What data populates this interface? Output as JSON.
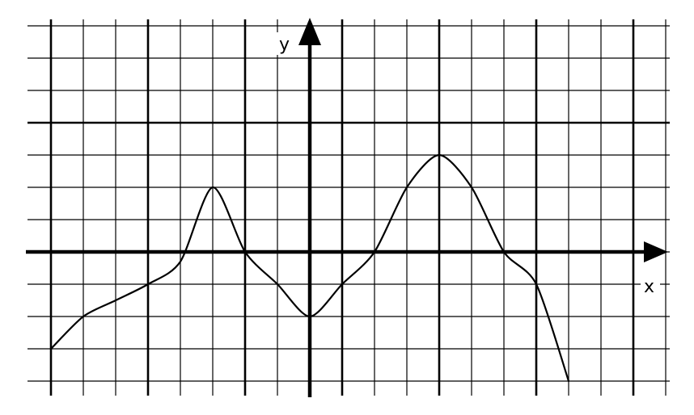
{
  "chart_data": {
    "type": "line",
    "title": "",
    "xlabel": "x",
    "ylabel": "y",
    "grid": true,
    "xlim": [
      -8.5,
      11
    ],
    "ylim": [
      -4,
      7
    ],
    "series": [
      {
        "values": [
          {
            "x": -8,
            "y": -3
          },
          {
            "x": -7,
            "y": -2
          },
          {
            "x": -6,
            "y": -1.5
          },
          {
            "x": -5,
            "y": -1
          },
          {
            "x": -4,
            "y": -0.3
          },
          {
            "x": -3,
            "y": 2
          },
          {
            "x": -2,
            "y": 0
          },
          {
            "x": -1,
            "y": -1
          },
          {
            "x": 0,
            "y": -2
          },
          {
            "x": 1,
            "y": -1
          },
          {
            "x": 2,
            "y": 0
          },
          {
            "x": 3,
            "y": 2
          },
          {
            "x": 4,
            "y": 3
          },
          {
            "x": 5,
            "y": 2
          },
          {
            "x": 6,
            "y": 0
          },
          {
            "x": 7,
            "y": -1
          },
          {
            "x": 8,
            "y": -4
          }
        ]
      }
    ]
  }
}
